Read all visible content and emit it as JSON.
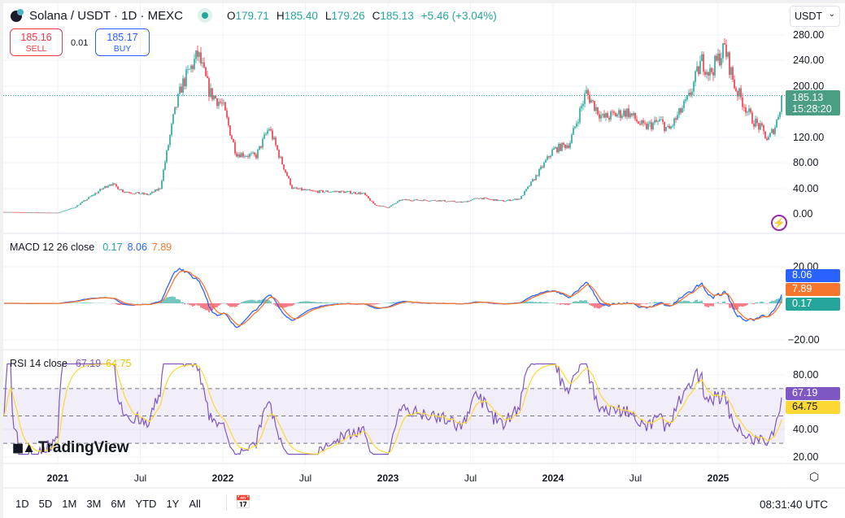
{
  "header": {
    "symbol": "Solana / USDT · 1D · MEXC",
    "ohlc": {
      "o_label": "O",
      "o": "179.71",
      "h_label": "H",
      "h": "185.40",
      "l_label": "L",
      "l": "179.26",
      "c_label": "C",
      "c": "185.13",
      "change": "+5.46 (+3.04%)"
    }
  },
  "trade": {
    "sell_price": "185.16",
    "sell_label": "SELL",
    "spread": "0.01",
    "buy_price": "185.17",
    "buy_label": "BUY"
  },
  "currency_select": "USDT",
  "price_axis": [
    "280.00",
    "240.00",
    "200.00",
    "120.00",
    "80.00",
    "40.00",
    "0.00"
  ],
  "last_price": {
    "value": "185.13",
    "countdown": "15:28:20"
  },
  "macd": {
    "label": "MACD 12 26 close",
    "hist": "0.17",
    "macd": "8.06",
    "signal": "7.89",
    "axis": [
      "20.00",
      "−20.00"
    ]
  },
  "rsi": {
    "label": "RSI 14 close",
    "rsi": "67.19",
    "ma": "64.75",
    "axis": [
      "80.00",
      "40.00",
      "20.00"
    ]
  },
  "time_axis": [
    {
      "t": "2021",
      "y": true
    },
    {
      "t": "Jul"
    },
    {
      "t": "2022",
      "y": true
    },
    {
      "t": "Jul"
    },
    {
      "t": "2023",
      "y": true
    },
    {
      "t": "Jul"
    },
    {
      "t": "2024",
      "y": true
    },
    {
      "t": "Jul"
    },
    {
      "t": "2025",
      "y": true
    }
  ],
  "ranges": [
    "1D",
    "5D",
    "1M",
    "3M",
    "6M",
    "YTD",
    "1Y",
    "All"
  ],
  "clock": "08:31:40 UTC",
  "logo": "TradingView",
  "colors": {
    "up": "#26a69a",
    "down": "#f23645",
    "macd": "#2962ff",
    "signal": "#f7762d",
    "rsi": "#7e57c2",
    "rsi_ma": "#fdd835"
  },
  "chart_data": {
    "type": "candlestick",
    "title": "Solana / USDT · 1D · MEXC",
    "ylim": [
      0,
      290
    ],
    "approx_close": [
      [
        2020.67,
        3
      ],
      [
        2020.9,
        2
      ],
      [
        2021.0,
        1.8
      ],
      [
        2021.1,
        10
      ],
      [
        2021.32,
        48
      ],
      [
        2021.4,
        35
      ],
      [
        2021.55,
        30
      ],
      [
        2021.62,
        40
      ],
      [
        2021.7,
        150
      ],
      [
        2021.75,
        200
      ],
      [
        2021.85,
        250
      ],
      [
        2021.92,
        190
      ],
      [
        2022.0,
        170
      ],
      [
        2022.08,
        95
      ],
      [
        2022.2,
        90
      ],
      [
        2022.28,
        135
      ],
      [
        2022.35,
        85
      ],
      [
        2022.42,
        40
      ],
      [
        2022.55,
        35
      ],
      [
        2022.7,
        35
      ],
      [
        2022.85,
        32
      ],
      [
        2022.92,
        14
      ],
      [
        2023.0,
        10
      ],
      [
        2023.08,
        22
      ],
      [
        2023.3,
        21
      ],
      [
        2023.45,
        18
      ],
      [
        2023.55,
        25
      ],
      [
        2023.7,
        20
      ],
      [
        2023.8,
        24
      ],
      [
        2023.9,
        60
      ],
      [
        2024.0,
        100
      ],
      [
        2024.1,
        110
      ],
      [
        2024.2,
        190
      ],
      [
        2024.3,
        150
      ],
      [
        2024.45,
        160
      ],
      [
        2024.55,
        135
      ],
      [
        2024.65,
        145
      ],
      [
        2024.7,
        130
      ],
      [
        2024.82,
        180
      ],
      [
        2024.9,
        240
      ],
      [
        2024.95,
        220
      ],
      [
        2025.04,
        260
      ],
      [
        2025.1,
        200
      ],
      [
        2025.2,
        150
      ],
      [
        2025.27,
        130
      ],
      [
        2025.3,
        115
      ],
      [
        2025.35,
        140
      ],
      [
        2025.39,
        185
      ]
    ]
  }
}
